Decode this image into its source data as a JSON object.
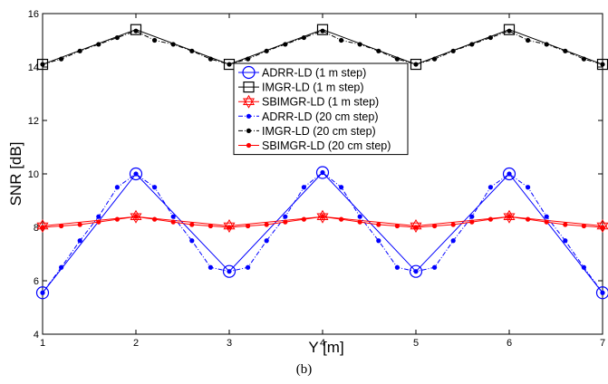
{
  "chart_data": {
    "type": "line",
    "xlabel": "Y [m]",
    "ylabel": "SNR [dB]",
    "xlim": [
      1,
      7
    ],
    "ylim": [
      4,
      16
    ],
    "xticks": [
      1,
      2,
      3,
      4,
      5,
      6,
      7
    ],
    "yticks": [
      4,
      6,
      8,
      10,
      12,
      14,
      16
    ],
    "grid": false,
    "legend_position": "center",
    "series": [
      {
        "name": "ADRR-LD (1 m step)",
        "color": "#0000ff",
        "style": "solid",
        "marker": "circle",
        "x": [
          1,
          2,
          3,
          4,
          5,
          6,
          7
        ],
        "y": [
          5.55,
          10.0,
          6.35,
          10.05,
          6.35,
          10.0,
          5.55
        ]
      },
      {
        "name": "IMGR-LD (1 m step)",
        "color": "#000000",
        "style": "solid",
        "marker": "square",
        "x": [
          1,
          2,
          3,
          4,
          5,
          6,
          7
        ],
        "y": [
          14.1,
          15.4,
          14.1,
          15.4,
          14.1,
          15.4,
          14.1
        ]
      },
      {
        "name": "SBIMGR-LD (1 m step)",
        "color": "#ff0000",
        "style": "solid",
        "marker": "hexagram",
        "x": [
          1,
          2,
          3,
          4,
          5,
          6,
          7
        ],
        "y": [
          8.05,
          8.4,
          8.05,
          8.4,
          8.05,
          8.4,
          8.05
        ]
      },
      {
        "name": "ADRR-LD (20 cm step)",
        "color": "#0000ff",
        "style": "dashdot",
        "marker": "dot",
        "x": [
          1,
          1.2,
          1.4,
          1.6,
          1.8,
          2,
          2.2,
          2.4,
          2.6,
          2.8,
          3,
          3.2,
          3.4,
          3.6,
          3.8,
          4,
          4.2,
          4.4,
          4.6,
          4.8,
          5,
          5.2,
          5.4,
          5.6,
          5.8,
          6,
          6.2,
          6.4,
          6.6,
          6.8,
          7
        ],
        "y": [
          5.55,
          6.5,
          7.5,
          8.4,
          9.5,
          10.0,
          9.5,
          8.4,
          7.5,
          6.5,
          6.35,
          6.5,
          7.5,
          8.4,
          9.5,
          10.05,
          9.5,
          8.4,
          7.5,
          6.5,
          6.35,
          6.5,
          7.5,
          8.4,
          9.5,
          10.0,
          9.5,
          8.4,
          7.5,
          6.5,
          5.55
        ]
      },
      {
        "name": "IMGR-LD (20 cm step)",
        "color": "#000000",
        "style": "dashdot",
        "marker": "dot",
        "x": [
          1,
          1.2,
          1.4,
          1.6,
          1.8,
          2,
          2.2,
          2.4,
          2.6,
          2.8,
          3,
          3.2,
          3.4,
          3.6,
          3.8,
          4,
          4.2,
          4.4,
          4.6,
          4.8,
          5,
          5.2,
          5.4,
          5.6,
          5.8,
          6,
          6.2,
          6.4,
          6.6,
          6.8,
          7
        ],
        "y": [
          14.1,
          14.3,
          14.6,
          14.85,
          15.1,
          15.35,
          15.0,
          14.85,
          14.6,
          14.3,
          14.1,
          14.3,
          14.6,
          14.85,
          15.1,
          15.35,
          15.0,
          14.85,
          14.6,
          14.3,
          14.1,
          14.3,
          14.6,
          14.85,
          15.1,
          15.35,
          15.0,
          14.85,
          14.6,
          14.3,
          14.1
        ]
      },
      {
        "name": "SBIMGR-LD (20 cm step)",
        "color": "#ff0000",
        "style": "solid",
        "marker": "dot",
        "x": [
          1,
          1.2,
          1.4,
          1.6,
          1.8,
          2,
          2.2,
          2.4,
          2.6,
          2.8,
          3,
          3.2,
          3.4,
          3.6,
          3.8,
          4,
          4.2,
          4.4,
          4.6,
          4.8,
          5,
          5.2,
          5.4,
          5.6,
          5.8,
          6,
          6.2,
          6.4,
          6.6,
          6.8,
          7
        ],
        "y": [
          8.0,
          8.05,
          8.1,
          8.2,
          8.3,
          8.4,
          8.3,
          8.2,
          8.1,
          8.05,
          8.0,
          8.05,
          8.1,
          8.2,
          8.3,
          8.4,
          8.3,
          8.2,
          8.1,
          8.05,
          8.0,
          8.05,
          8.1,
          8.2,
          8.3,
          8.4,
          8.3,
          8.2,
          8.1,
          8.05,
          8.0
        ]
      }
    ]
  },
  "caption": "(b)"
}
